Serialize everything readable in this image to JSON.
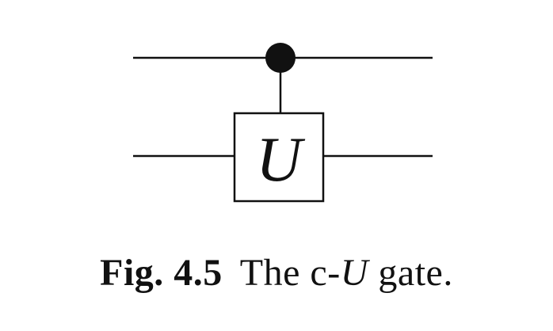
{
  "diagram": {
    "gate": {
      "label": "U"
    }
  },
  "caption": {
    "label": "Fig. 4.5",
    "text_before": "The c-",
    "text_math": "U",
    "text_after": " gate."
  },
  "colors": {
    "ink": "#111111",
    "background": "#ffffff"
  }
}
